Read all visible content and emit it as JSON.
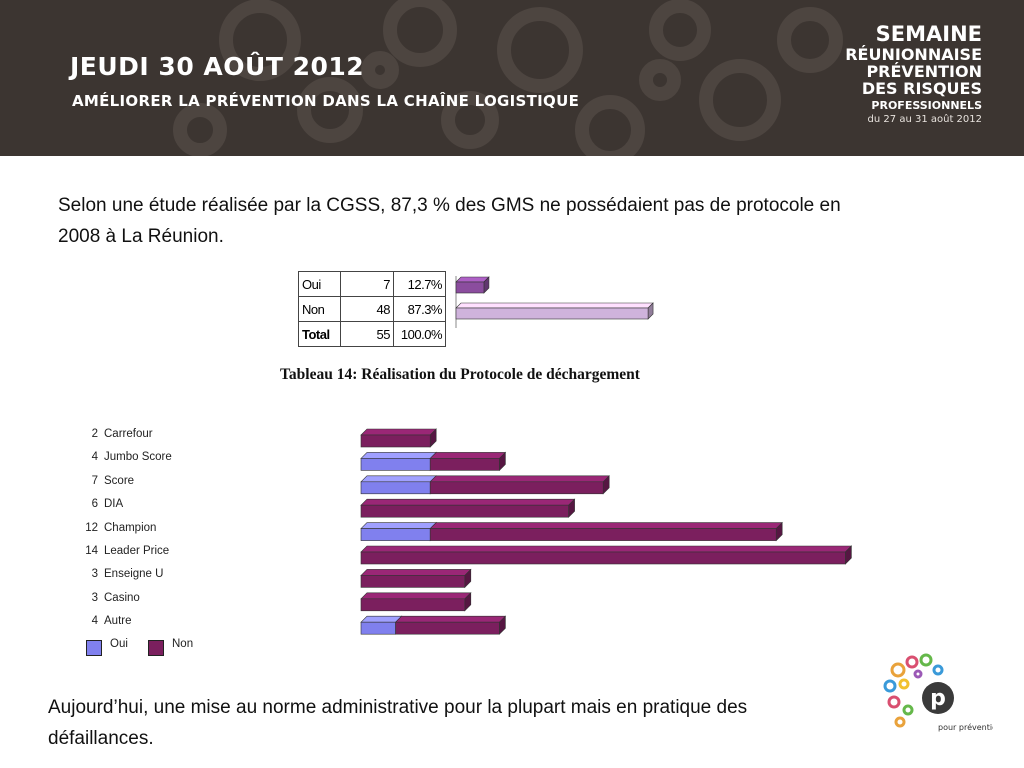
{
  "header": {
    "day_title": "JEUDI 30 AOÛT 2012",
    "subtitle": "AMÉLIORER LA PRÉVENTION DANS LA CHAÎNE LOGISTIQUE",
    "event": {
      "line1": "SEMAINE",
      "line2": "RÉUNIONNAISE",
      "line3": "PRÉVENTION",
      "line4": "DES RISQUES",
      "line5": "PROFESSIONNELS",
      "dates": "du 27 au 31 août 2012"
    }
  },
  "intro_text": "Selon une étude réalisée par la CGSS, 87,3 % des GMS ne possédaient pas de protocole en 2008 à La Réunion.",
  "outro_text": "Aujourd’hui, une mise au norme administrative pour la plupart mais en pratique des défaillances.",
  "colors": {
    "banner": "#3c3531",
    "oui_small": "#8b4d9e",
    "non_small": "#cfb3dc",
    "oui": "#8080ee",
    "non": "#7b1f5e"
  },
  "summary_table": {
    "rows": [
      {
        "label": "Oui",
        "count": "7",
        "pct": "12.7%"
      },
      {
        "label": "Non",
        "count": "48",
        "pct": "87.3%"
      }
    ],
    "total": {
      "label": "Total",
      "count": "55",
      "pct": "100.0%"
    }
  },
  "caption": "Tableau 14: Réalisation du Protocole de déchargement",
  "chart_data": [
    {
      "type": "bar",
      "orientation": "horizontal",
      "categories": [
        "Oui",
        "Non"
      ],
      "values": [
        12.7,
        87.3
      ],
      "unit": "%",
      "xlim": [
        0,
        100
      ]
    },
    {
      "type": "bar",
      "orientation": "horizontal",
      "stacked": true,
      "categories": [
        "Carrefour",
        "Jumbo Score",
        "Score",
        "DIA",
        "Champion",
        "Leader Price",
        "Enseigne U",
        "Casino",
        "Autre"
      ],
      "totals": [
        "2",
        "4",
        "7",
        "6",
        "12",
        "14",
        "3",
        "3",
        "4"
      ],
      "series": [
        {
          "name": "Oui",
          "values": [
            0,
            2,
            2,
            0,
            2,
            0,
            0,
            0,
            1
          ]
        },
        {
          "name": "Non",
          "values": [
            2,
            2,
            5,
            6,
            10,
            14,
            3,
            3,
            3
          ]
        }
      ],
      "legend": "bottom-left"
    }
  ],
  "logo": {
    "text": "pour prévention",
    "letter": "p"
  }
}
